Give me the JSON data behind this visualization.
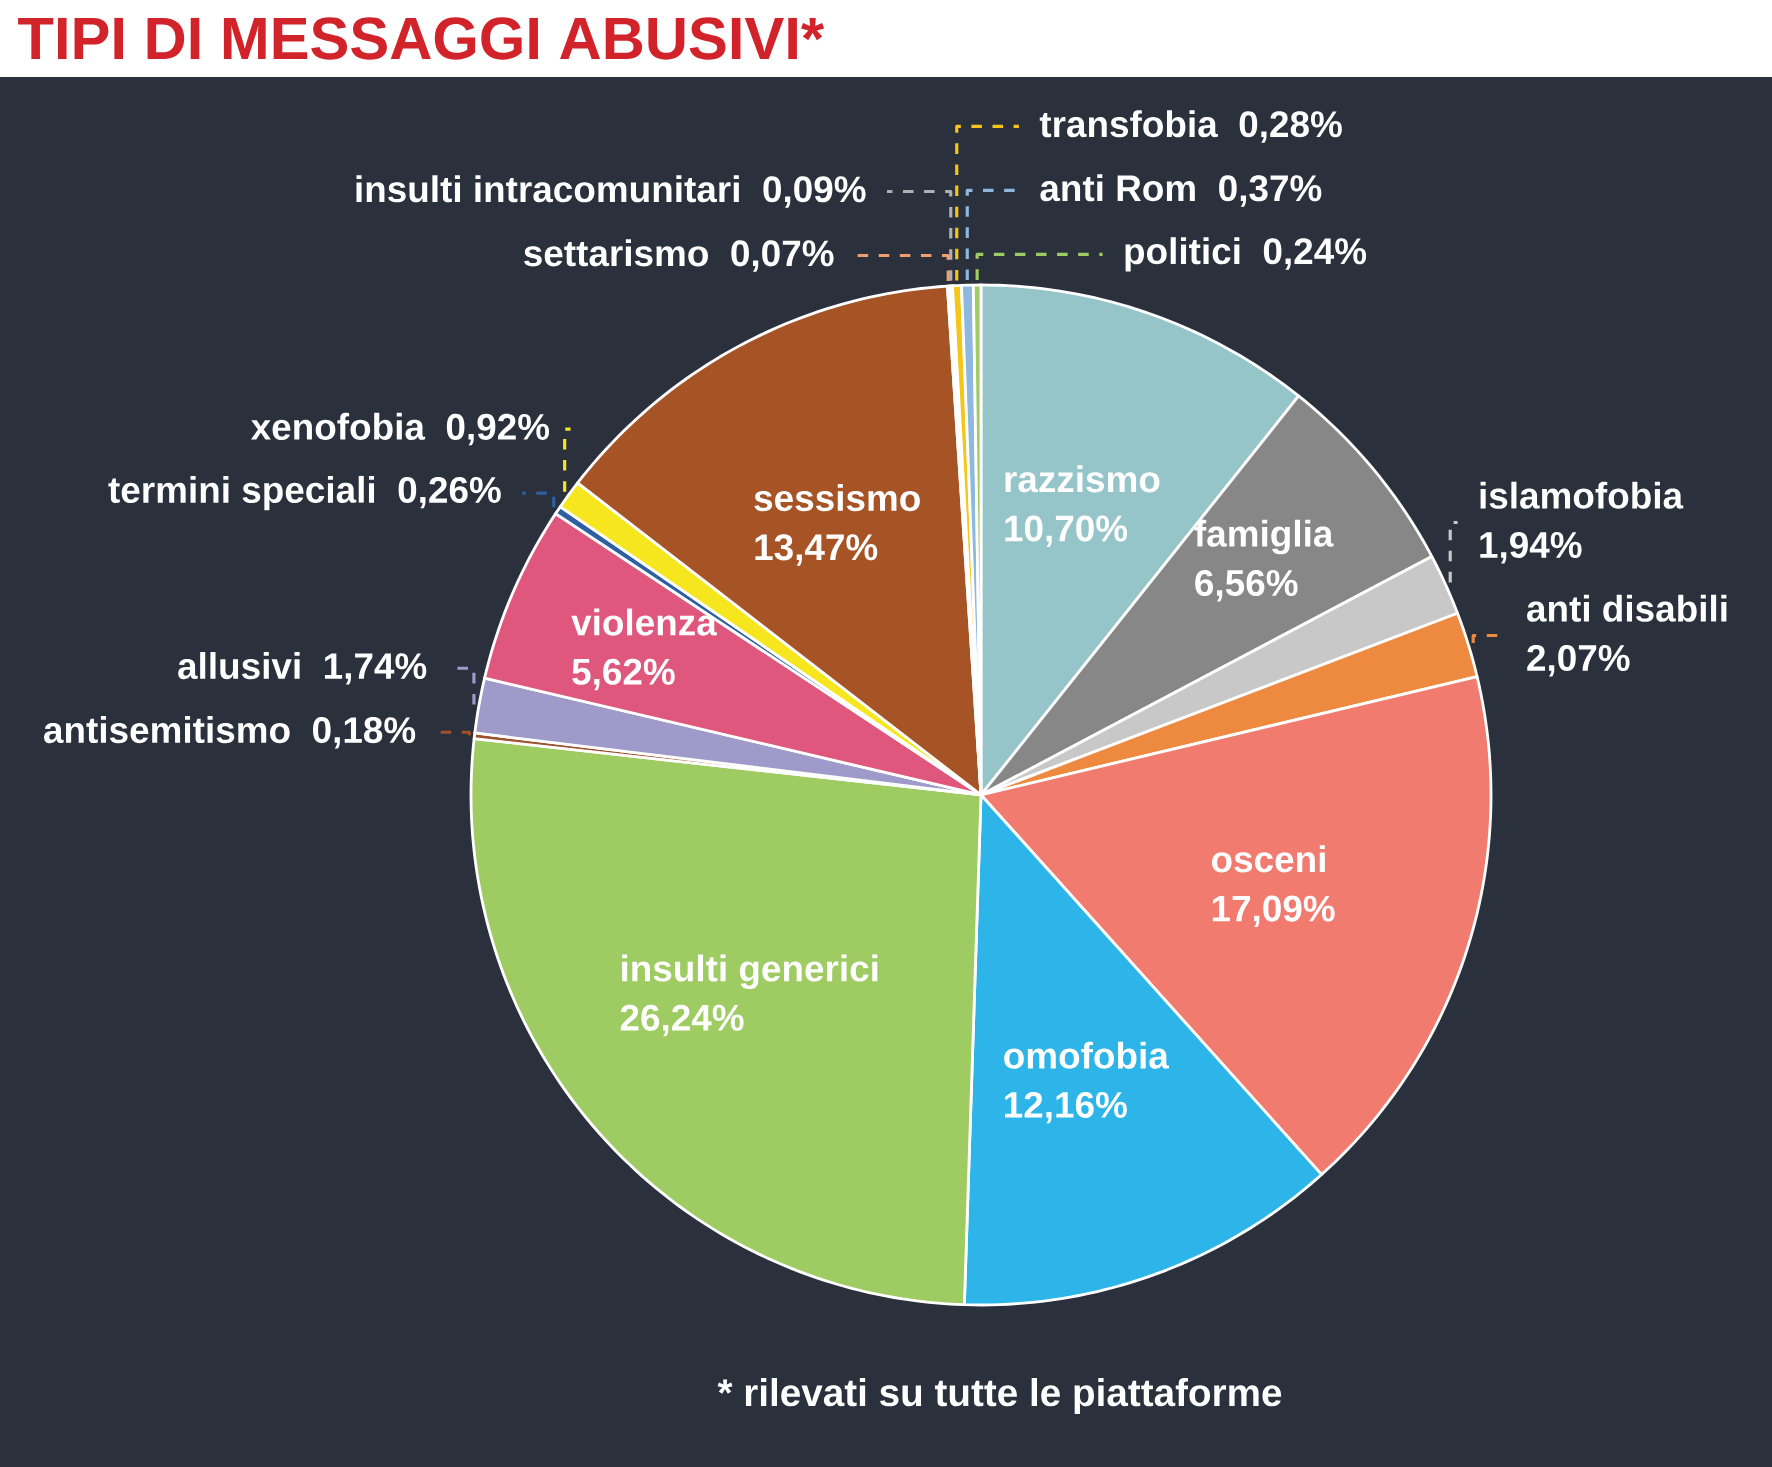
{
  "chart_data": {
    "type": "pie",
    "title": "TIPI DI MESSAGGI ABUSIVI*",
    "categories": [
      "razzismo",
      "famiglia",
      "islamofobia",
      "anti disabili",
      "osceni",
      "omofobia",
      "insulti generici",
      "antisemitismo",
      "allusivi",
      "violenza",
      "termini speciali",
      "xenofobia",
      "sessismo",
      "settarismo",
      "insulti intracomunitari",
      "transfobia",
      "anti Rom",
      "politici"
    ],
    "values": [
      10.7,
      6.56,
      1.94,
      2.07,
      17.09,
      12.16,
      26.24,
      0.18,
      1.74,
      5.62,
      0.26,
      0.92,
      13.47,
      0.07,
      0.09,
      0.28,
      0.37,
      0.24
    ],
    "value_labels": [
      "10,70%",
      "6,56%",
      "1,94%",
      "2,07%",
      "17,09%",
      "12,16%",
      "26,24%",
      "0,18%",
      "1,74%",
      "5,62%",
      "0,26%",
      "0,92%",
      "13,47%",
      "0,07%",
      "0,09%",
      "0,28%",
      "0,37%",
      "0,24%"
    ],
    "colors": [
      "#96c5c9",
      "#878787",
      "#c8c8c8",
      "#ee8a3f",
      "#f07b6e",
      "#2db4e8",
      "#9ecb62",
      "#a0522d",
      "#a09acb",
      "#e0577e",
      "#2e5fa0",
      "#f5e61e",
      "#a65426",
      "#f0a070",
      "#b0b0b0",
      "#f5c518",
      "#8fb8e0",
      "#9ecb62"
    ],
    "annotations": [
      "* rilevati su tutte le piattaforme"
    ]
  }
}
